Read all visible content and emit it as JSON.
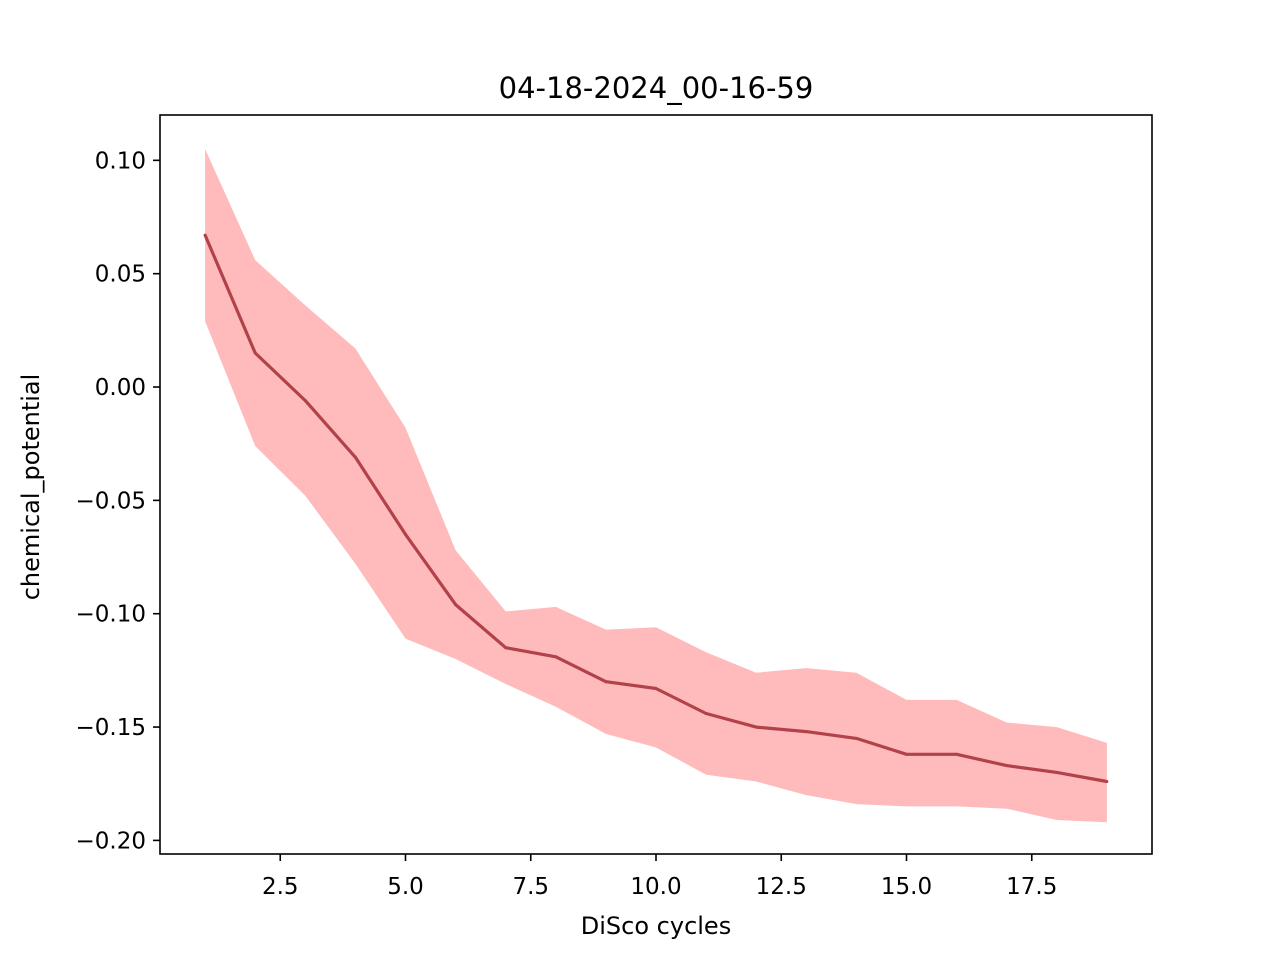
{
  "chart_data": {
    "type": "line",
    "title": "04-18-2024_00-16-59",
    "xlabel": "DiSco cycles",
    "ylabel": "chemical_potential",
    "xlim": [
      0.1,
      19.9
    ],
    "ylim": [
      -0.206,
      0.12
    ],
    "xticks": [
      2.5,
      5.0,
      7.5,
      10.0,
      12.5,
      15.0,
      17.5
    ],
    "xtick_labels": [
      "2.5",
      "5.0",
      "7.5",
      "10.0",
      "12.5",
      "15.0",
      "17.5"
    ],
    "yticks": [
      0.1,
      0.05,
      0.0,
      -0.05,
      -0.1,
      -0.15,
      -0.2
    ],
    "ytick_labels": [
      "0.10",
      "0.05",
      "0.00",
      "−0.05",
      "−0.10",
      "−0.15",
      "−0.20"
    ],
    "grid": false,
    "legend": "none",
    "series": [
      {
        "x": [
          1,
          2,
          3,
          4,
          5,
          6,
          7,
          8,
          9,
          10,
          11,
          12,
          13,
          14,
          15,
          16,
          17,
          18,
          19
        ],
        "values": [
          0.067,
          0.015,
          -0.006,
          -0.031,
          -0.065,
          -0.096,
          -0.115,
          -0.119,
          -0.13,
          -0.133,
          -0.144,
          -0.15,
          -0.152,
          -0.155,
          -0.162,
          -0.162,
          -0.167,
          -0.17,
          -0.174
        ],
        "lower": [
          0.029,
          -0.026,
          -0.048,
          -0.078,
          -0.111,
          -0.12,
          -0.131,
          -0.141,
          -0.153,
          -0.159,
          -0.171,
          -0.174,
          -0.18,
          -0.184,
          -0.185,
          -0.185,
          -0.186,
          -0.191,
          -0.192
        ],
        "upper": [
          0.105,
          0.056,
          0.036,
          0.017,
          -0.018,
          -0.072,
          -0.099,
          -0.097,
          -0.107,
          -0.106,
          -0.117,
          -0.126,
          -0.124,
          -0.126,
          -0.138,
          -0.138,
          -0.148,
          -0.15,
          -0.157
        ],
        "line_color": "#b2424a",
        "band_color": "#ffbbbc"
      }
    ]
  }
}
